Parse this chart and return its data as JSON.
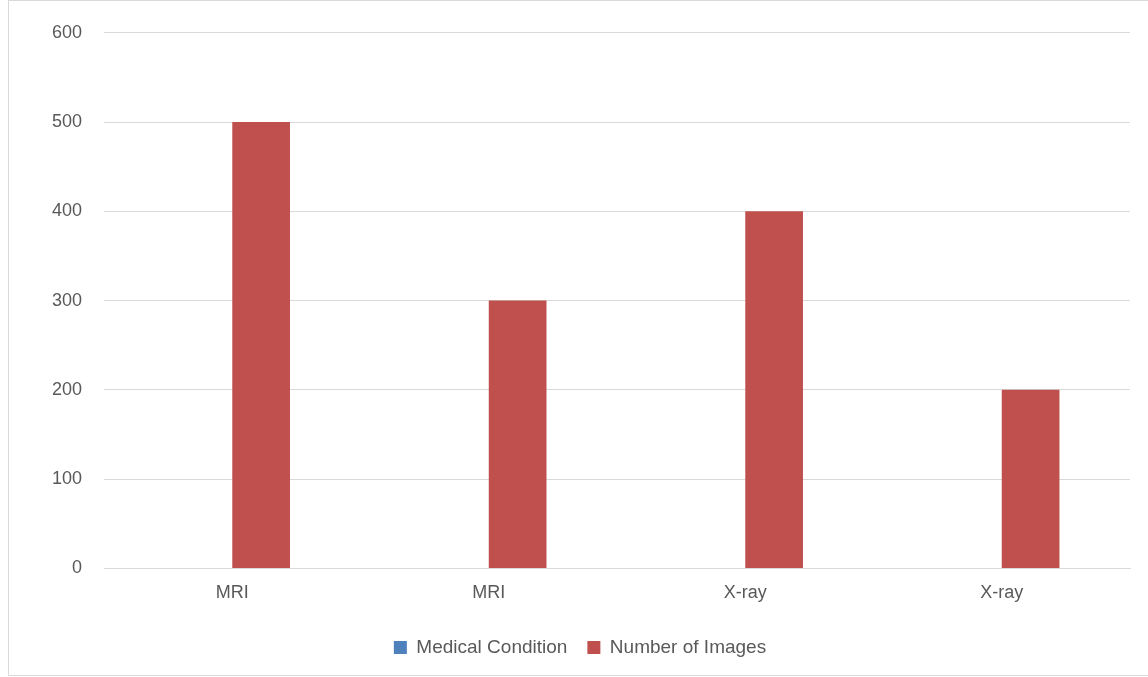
{
  "chart_data": {
    "type": "bar",
    "categories": [
      "MRI",
      "MRI",
      "X-ray",
      "X-ray"
    ],
    "series": [
      {
        "name": "Medical Condition",
        "color": "#4f81bd",
        "values": [
          0,
          0,
          0,
          0
        ]
      },
      {
        "name": "Number of Images",
        "color": "#c0504d",
        "values": [
          500,
          300,
          400,
          200
        ]
      }
    ],
    "ylim": [
      0,
      600
    ],
    "yticks": [
      0,
      100,
      200,
      300,
      400,
      500,
      600
    ],
    "grid": "y",
    "legend": "bottom"
  }
}
